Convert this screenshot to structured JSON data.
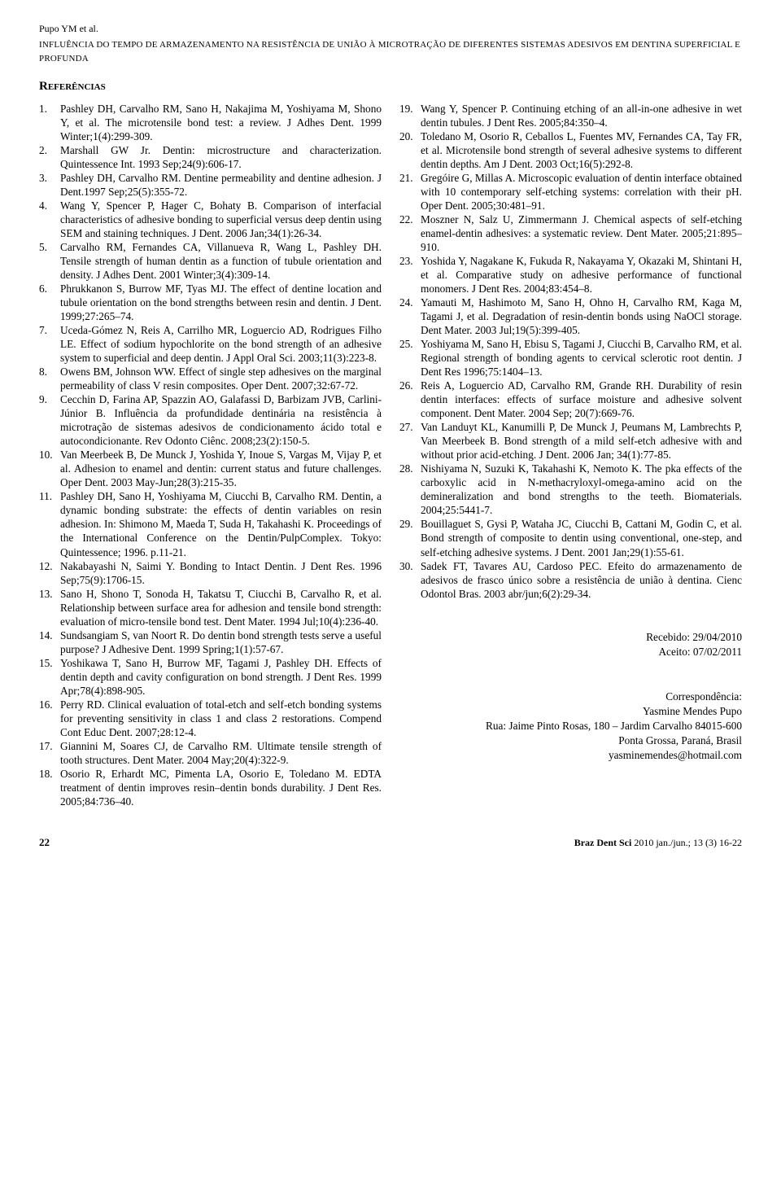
{
  "header": {
    "author_line": "Pupo YM et al.",
    "title_line": "INFLUÊNCIA DO TEMPO DE ARMAZENAMENTO NA RESISTÊNCIA DE UNIÃO À MICROTRAÇÃO DE DIFERENTES SISTEMAS ADESIVOS EM DENTINA SUPERFICIAL E PROFUNDA"
  },
  "section_title": "Referências",
  "references_left": [
    {
      "n": "1.",
      "t": "Pashley DH, Carvalho RM, Sano H, Nakajima M, Yoshiyama M, Shono Y, et al. The microtensile bond test: a review. J Adhes Dent. 1999 Winter;1(4):299-309."
    },
    {
      "n": "2.",
      "t": "Marshall GW Jr. Dentin: microstructure and characterization. Quintessence Int. 1993 Sep;24(9):606-17."
    },
    {
      "n": "3.",
      "t": "Pashley DH, Carvalho RM. Dentine permeability and dentine adhesion. J Dent.1997 Sep;25(5):355-72."
    },
    {
      "n": "4.",
      "t": "Wang Y, Spencer P, Hager C, Bohaty B. Comparison of interfacial characteristics of adhesive bonding to superficial versus deep dentin using SEM and staining techniques. J Dent. 2006 Jan;34(1):26-34."
    },
    {
      "n": "5.",
      "t": "Carvalho RM, Fernandes CA, Villanueva R, Wang L, Pashley DH. Tensile strength of human dentin as a function of tubule orientation and density. J Adhes Dent. 2001 Winter;3(4):309-14."
    },
    {
      "n": "6.",
      "t": "Phrukkanon S, Burrow MF, Tyas MJ. The effect of dentine location and tubule orientation on the bond strengths between resin and dentin. J Dent. 1999;27:265–74."
    },
    {
      "n": "7.",
      "t": "Uceda-Gómez N, Reis A, Carrilho MR, Loguercio AD, Rodrigues Filho LE. Effect of sodium hypochlorite on the bond strength of an adhesive system to superficial and deep dentin. J Appl Oral Sci. 2003;11(3):223-8."
    },
    {
      "n": "8.",
      "t": "Owens BM, Johnson WW. Effect of single step adhesives on the marginal permeability of class V resin composites. Oper Dent. 2007;32:67-72."
    },
    {
      "n": "9.",
      "t": "Cecchin D, Farina AP, Spazzin AO, Galafassi D, Barbizam JVB, Carlini-Júnior B. Influência da profundidade dentinária na resistência à microtração de sistemas adesivos de condicionamento ácido total e autocondicionante. Rev Odonto Ciênc. 2008;23(2):150-5."
    },
    {
      "n": "10.",
      "t": "Van Meerbeek B, De Munck J, Yoshida Y, Inoue S, Vargas M, Vijay P, et al. Adhesion to enamel and dentin: current status and future challenges. Oper Dent. 2003 May-Jun;28(3):215-35."
    },
    {
      "n": "11.",
      "t": "Pashley DH, Sano H, Yoshiyama M, Ciucchi B, Carvalho RM. Dentin, a dynamic bonding substrate: the effects of dentin variables on resin adhesion. In: Shimono M, Maeda T, Suda H, Takahashi K. Proceedings of the International Conference on the Dentin/PulpComplex. Tokyo: Quintessence; 1996. p.11-21."
    },
    {
      "n": "12.",
      "t": "Nakabayashi N, Saimi Y. Bonding to Intact Dentin. J Dent Res. 1996 Sep;75(9):1706-15."
    },
    {
      "n": "13.",
      "t": "Sano H, Shono T, Sonoda H, Takatsu T, Ciucchi B, Carvalho R, et al. Relationship between surface area for adhesion and tensile bond strength: evaluation of micro-tensile bond test. Dent Mater. 1994 Jul;10(4):236-40."
    },
    {
      "n": "14.",
      "t": "Sundsangiam S, van Noort R. Do dentin bond strength tests serve a useful purpose? J Adhesive Dent. 1999 Spring;1(1):57-67."
    },
    {
      "n": "15.",
      "t": "Yoshikawa T, Sano H, Burrow MF, Tagami J, Pashley DH. Effects of dentin depth and cavity configuration on bond strength. J Dent Res. 1999 Apr;78(4):898-905."
    },
    {
      "n": "16.",
      "t": "Perry RD. Clinical evaluation of total-etch and self-etch bonding systems for preventing sensitivity in class 1 and class 2 restorations. Compend Cont Educ Dent. 2007;28:12-4."
    },
    {
      "n": "17.",
      "t": "Giannini M, Soares CJ, de Carvalho RM. Ultimate tensile strength of tooth structures. Dent Mater. 2004 May;20(4):322-9."
    },
    {
      "n": "18.",
      "t": "Osorio R, Erhardt MC, Pimenta LA, Osorio E, Toledano M. EDTA treatment of dentin improves resin–dentin bonds durability. J Dent Res. 2005;84:736–40."
    }
  ],
  "references_right": [
    {
      "n": "19.",
      "t": "Wang Y, Spencer P. Continuing etching of an all-in-one adhesive in wet dentin tubules. J Dent Res. 2005;84:350–4."
    },
    {
      "n": "20.",
      "t": "Toledano M, Osorio R, Ceballos L, Fuentes MV, Fernandes CA, Tay FR, et al. Microtensile bond strength of several adhesive systems to different dentin depths. Am J Dent. 2003 Oct;16(5):292-8."
    },
    {
      "n": "21.",
      "t": "Gregóire G, Millas A. Microscopic evaluation of dentin interface obtained with 10 contemporary self-etching systems: correlation with their pH. Oper Dent. 2005;30:481–91."
    },
    {
      "n": "22.",
      "t": "Moszner N, Salz U, Zimmermann J. Chemical aspects of self-etching enamel-dentin adhesives: a systematic review. Dent Mater. 2005;21:895–910."
    },
    {
      "n": "23.",
      "t": "Yoshida Y, Nagakane K, Fukuda R, Nakayama Y, Okazaki M, Shintani H, et al. Comparative study on adhesive performance of functional monomers. J Dent Res. 2004;83:454–8."
    },
    {
      "n": "24.",
      "t": "Yamauti M, Hashimoto M, Sano H, Ohno H, Carvalho RM, Kaga M, Tagami J, et al. Degradation of resin-dentin bonds using NaOCl storage. Dent Mater. 2003 Jul;19(5):399-405."
    },
    {
      "n": "25.",
      "t": "Yoshiyama M, Sano H, Ebisu S, Tagami J, Ciucchi B, Carvalho RM, et al. Regional strength of bonding agents to cervical sclerotic root dentin. J Dent Res 1996;75:1404–13."
    },
    {
      "n": "26.",
      "t": "Reis A, Loguercio AD, Carvalho RM, Grande RH. Durability of resin dentin interfaces: effects of surface moisture and adhesive solvent component. Dent Mater. 2004 Sep; 20(7):669-76."
    },
    {
      "n": "27.",
      "t": "Van Landuyt KL, Kanumilli P, De Munck J, Peumans M, Lambrechts P, Van Meerbeek B.  Bond strength of a mild self-etch adhesive with and without prior acid-etching. J Dent. 2006 Jan; 34(1):77-85."
    },
    {
      "n": "28.",
      "t": "Nishiyama N, Suzuki K, Takahashi K, Nemoto K. The pka effects of the carboxylic acid in N-methacryloxyl-omega-amino acid on the demineralization and bond strengths to the teeth. Biomaterials. 2004;25:5441-7."
    },
    {
      "n": "29.",
      "t": "Bouillaguet S, Gysi P, Wataha JC, Ciucchi B, Cattani M, Godin C, et al. Bond strength of composite to dentin using conventional, one-step, and self-etching adhesive systems. J Dent. 2001 Jan;29(1):55-61."
    },
    {
      "n": "30.",
      "t": "Sadek FT, Tavares AU, Cardoso PEC. Efeito do armazenamento de adesivos de frasco único sobre a resistência de união à dentina. Cienc Odontol Bras. 2003 abr/jun;6(2):29-34."
    }
  ],
  "meta": {
    "received": "Recebido: 29/04/2010",
    "accepted": "Aceito: 07/02/2011"
  },
  "correspondence": {
    "label": "Correspondência:",
    "name": "Yasmine Mendes Pupo",
    "address": "Rua: Jaime Pinto Rosas, 180 – Jardim Carvalho  84015-600",
    "city": "Ponta Grossa, Paraná, Brasil",
    "email": "yasminemendes@hotmail.com"
  },
  "footer": {
    "page": "22",
    "journal_bold": "Braz Dent Sci ",
    "journal_rest": "2010 jan./jun.; 13 (3) 16-22"
  }
}
